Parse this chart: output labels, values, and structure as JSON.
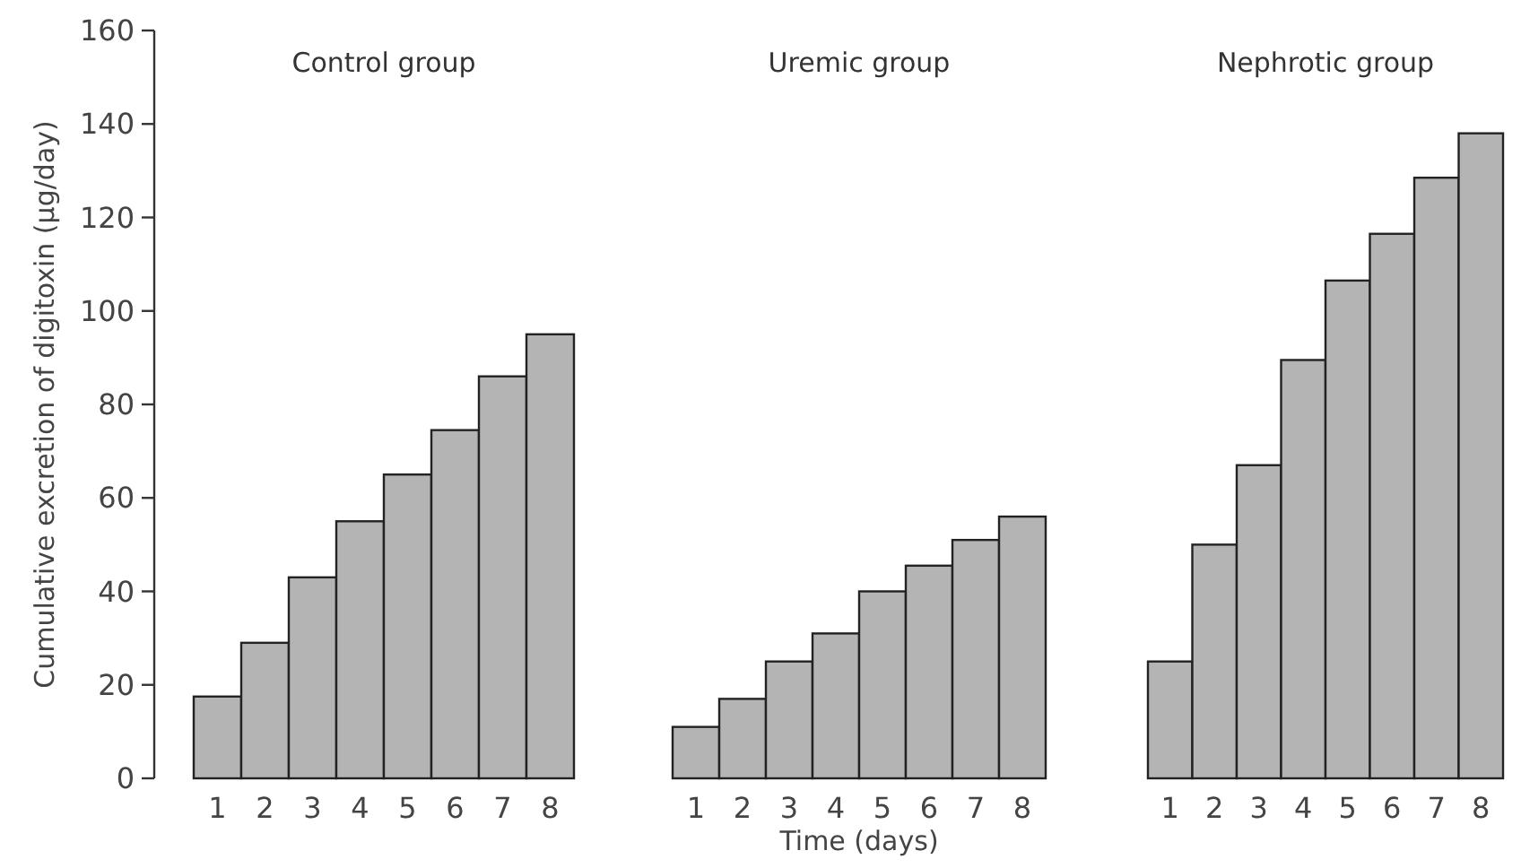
{
  "chart_data": [
    {
      "type": "bar",
      "title": "Control group",
      "ylabel": "Cumulative excretion of digitoxin (µg/day)",
      "categories": [
        "1",
        "2",
        "3",
        "4",
        "5",
        "6",
        "7",
        "8"
      ],
      "values": [
        17.5,
        29,
        43,
        55,
        65,
        74.5,
        86,
        95
      ],
      "color": "#b4b4b4",
      "ylim": [
        0,
        160
      ],
      "yticks": [
        0,
        20,
        40,
        60,
        80,
        100,
        120,
        140,
        160
      ]
    },
    {
      "type": "bar",
      "title": "Uremic group",
      "xlabel": "Time (days)",
      "categories": [
        "1",
        "2",
        "3",
        "4",
        "5",
        "6",
        "7",
        "8"
      ],
      "values": [
        11,
        17,
        25,
        31,
        40,
        45.5,
        51,
        56
      ],
      "color": "#b4b4b4",
      "ylim": [
        0,
        160
      ],
      "tick_labels": "x"
    },
    {
      "type": "bar",
      "title": "Nephrotic group",
      "categories": [
        "1",
        "2",
        "3",
        "4",
        "5",
        "6",
        "7",
        "8"
      ],
      "values": [
        25,
        50,
        67,
        89.5,
        106.5,
        116.5,
        128.5,
        138
      ],
      "color": "#b4b4b4",
      "ylim": [
        0,
        160
      ],
      "tick_labels": "x"
    }
  ]
}
